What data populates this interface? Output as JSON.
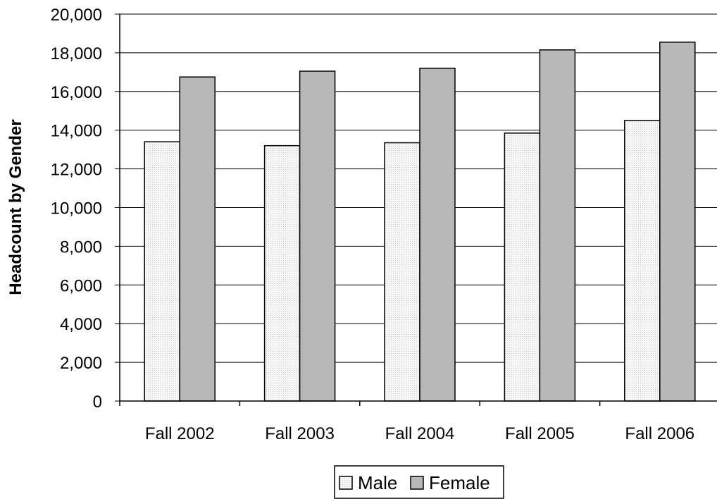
{
  "chart_data": {
    "type": "bar",
    "title": "",
    "xlabel": "",
    "ylabel": "Headcount by Gender",
    "categories": [
      "Fall 2002",
      "Fall 2003",
      "Fall 2004",
      "Fall 2005",
      "Fall 2006"
    ],
    "series": [
      {
        "name": "Male",
        "values": [
          13400,
          13200,
          13350,
          13850,
          14500
        ],
        "color": "#f0f0f0"
      },
      {
        "name": "Female",
        "values": [
          16750,
          17050,
          17200,
          18150,
          18550
        ],
        "color": "#b8b8b8"
      }
    ],
    "ylim": [
      0,
      20000
    ],
    "ytick_labels": [
      "0",
      "2,000",
      "4,000",
      "6,000",
      "8,000",
      "10,000",
      "12,000",
      "14,000",
      "16,000",
      "18,000",
      "20,000"
    ],
    "grid": true,
    "legend_position": "bottom"
  }
}
